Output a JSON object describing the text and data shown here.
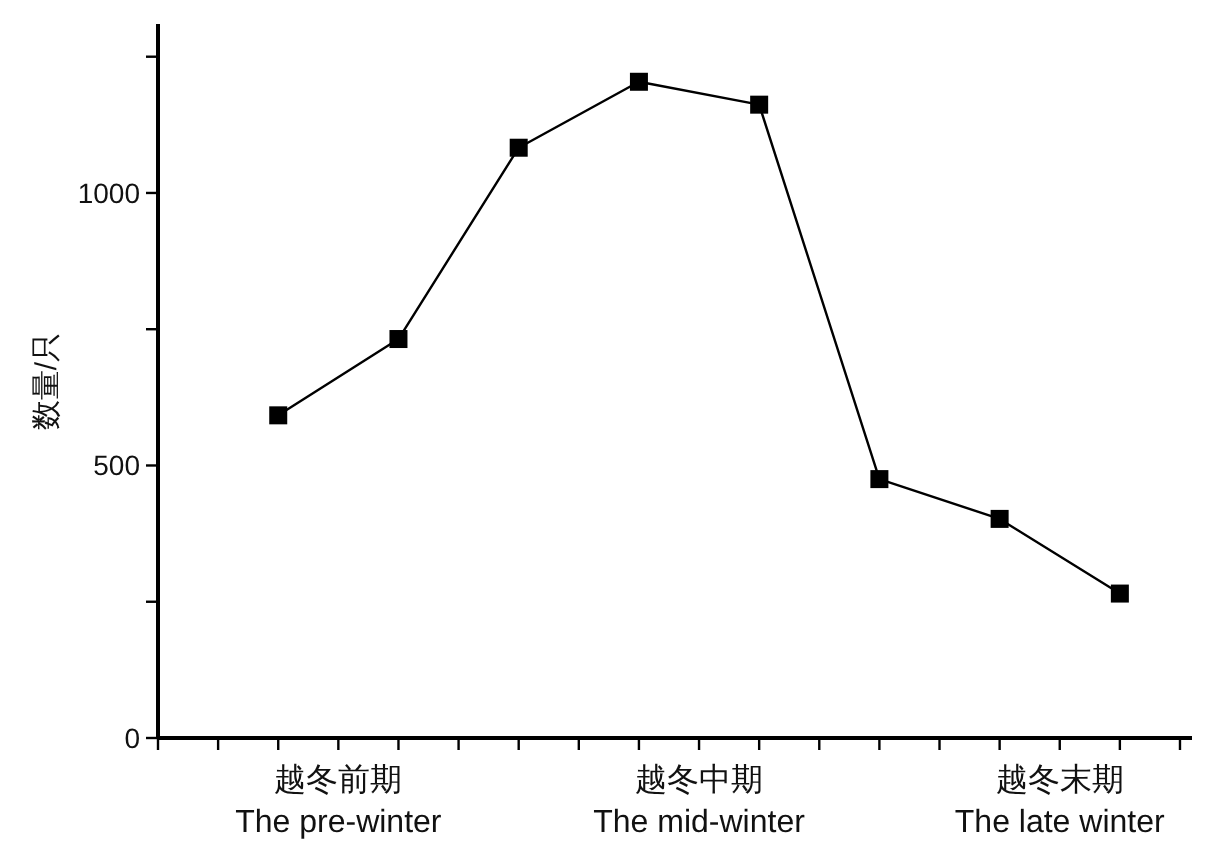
{
  "chart_data": {
    "type": "line",
    "ylabel": "数量/只",
    "categories": [
      null,
      null,
      null,
      null,
      null,
      null,
      null,
      null
    ],
    "series": [
      {
        "color": "#000000",
        "values": [
          592,
          732,
          1083,
          1204,
          1162,
          475,
          402,
          265
        ]
      }
    ],
    "annotations": [
      "越冬前期\nThe pre-winter",
      "越冬中期\nThe mid-winter",
      "越冬末期\nThe late winter"
    ],
    "ylim": [
      0,
      1310
    ],
    "yticks": [
      0,
      {
        "value": 250,
        "label": null
      },
      500,
      {
        "value": 750,
        "label": null
      },
      1000,
      {
        "value": 1250,
        "label": null
      }
    ],
    "marker": "square",
    "line_style": "solid"
  }
}
